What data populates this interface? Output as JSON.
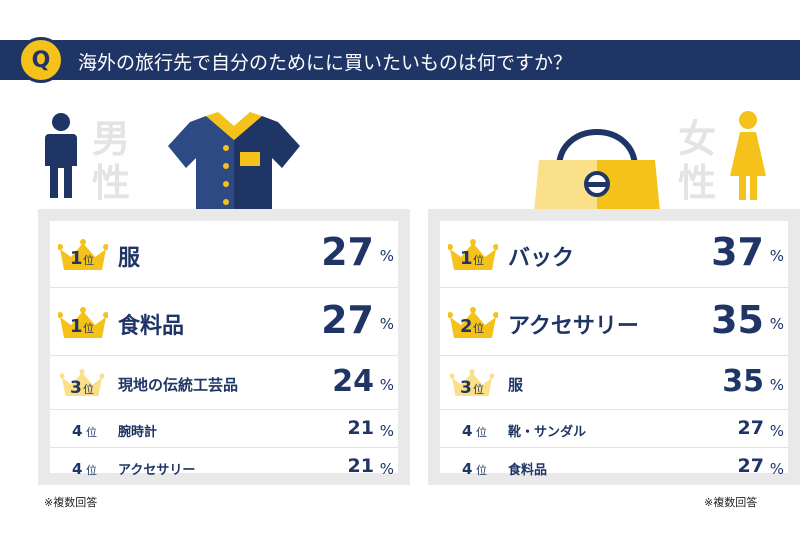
{
  "question": {
    "badge": "Q",
    "text": "海外の旅行先で自分のためにに買いたいものは何ですか？"
  },
  "colors": {
    "navy": "#1f3566",
    "gold": "#f5c21b",
    "gold_light": "#fbe08a",
    "panel_gray": "#e9e9e9"
  },
  "male": {
    "label_1": "男",
    "label_2": "性",
    "icons": [
      "man-icon",
      "shirt-icon"
    ],
    "rankings": [
      {
        "rank": "1",
        "suffix": "位",
        "item": "服",
        "value": "27",
        "unit": "%"
      },
      {
        "rank": "1",
        "suffix": "位",
        "item": "食料品",
        "value": "27",
        "unit": "%"
      },
      {
        "rank": "3",
        "suffix": "位",
        "item": "現地の伝統工芸品",
        "value": "24",
        "unit": "%"
      },
      {
        "rank": "4",
        "suffix": "位",
        "item": "腕時計",
        "value": "21",
        "unit": "%"
      },
      {
        "rank": "4",
        "suffix": "位",
        "item": "アクセサリー",
        "value": "21",
        "unit": "%"
      }
    ],
    "note": "※複数回答"
  },
  "female": {
    "label_1": "女",
    "label_2": "性",
    "icons": [
      "woman-icon",
      "handbag-icon"
    ],
    "rankings": [
      {
        "rank": "1",
        "suffix": "位",
        "item": "バック",
        "value": "37",
        "unit": "%"
      },
      {
        "rank": "2",
        "suffix": "位",
        "item": "アクセサリー",
        "value": "35",
        "unit": "%"
      },
      {
        "rank": "3",
        "suffix": "位",
        "item": "服",
        "value": "35",
        "unit": "%"
      },
      {
        "rank": "4",
        "suffix": "位",
        "item": "靴・サンダル",
        "value": "27",
        "unit": "%"
      },
      {
        "rank": "4",
        "suffix": "位",
        "item": "食料品",
        "value": "27",
        "unit": "%"
      }
    ],
    "note": "※複数回答"
  },
  "chart_data": {
    "type": "table",
    "title": "海外の旅行先で自分のためにに買いたいものは何ですか？",
    "unit": "%",
    "series": [
      {
        "name": "男性",
        "categories": [
          "服",
          "食料品",
          "現地の伝統工芸品",
          "腕時計",
          "アクセサリー"
        ],
        "values": [
          27,
          27,
          24,
          21,
          21
        ],
        "ranks": [
          1,
          1,
          3,
          4,
          4
        ]
      },
      {
        "name": "女性",
        "categories": [
          "バック",
          "アクセサリー",
          "服",
          "靴・サンダル",
          "食料品"
        ],
        "values": [
          37,
          35,
          35,
          27,
          27
        ],
        "ranks": [
          1,
          2,
          3,
          4,
          4
        ]
      }
    ]
  }
}
